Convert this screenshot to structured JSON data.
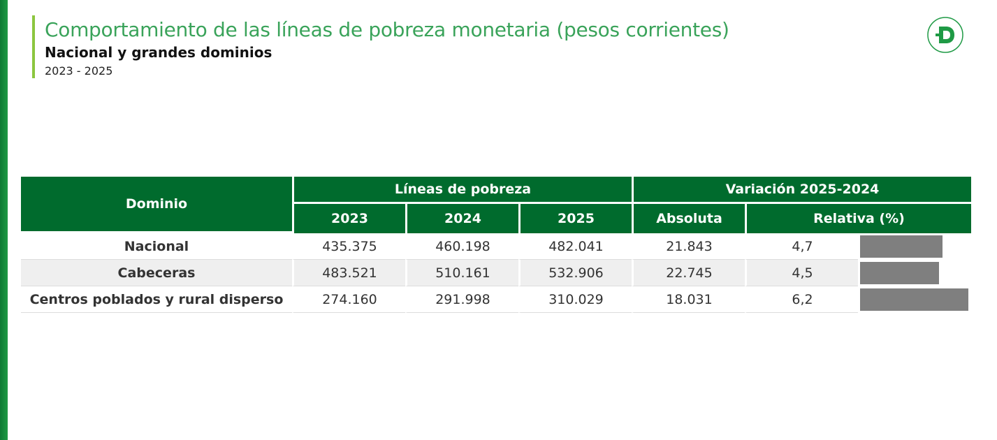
{
  "header": {
    "title": "Comportamiento de las líneas de pobreza monetaria (pesos corrientes)",
    "subtitle": "Nacional y grandes dominios",
    "years": "2023 - 2025"
  },
  "colors": {
    "header_green": "#006b2d",
    "title_green": "#3aa35a",
    "accent_lime": "#8cc63f",
    "bar_gray": "#7f7f7f"
  },
  "logo_icon": "dane-d-logo-icon",
  "chart_data": {
    "type": "table",
    "headers": {
      "dominio": "Dominio",
      "group_lineas": "Líneas de pobreza",
      "group_variacion": "Variación 2025-2024",
      "y2023": "2023",
      "y2024": "2024",
      "y2025": "2025",
      "absoluta": "Absoluta",
      "relativa": "Relativa (%)"
    },
    "rows": [
      {
        "dominio": "Nacional",
        "y2023": "435.375",
        "y2024": "460.198",
        "y2025": "482.041",
        "absoluta": "21.843",
        "relativa": "4,7",
        "relativa_value": 4.7
      },
      {
        "dominio": "Cabeceras",
        "y2023": "483.521",
        "y2024": "510.161",
        "y2025": "532.906",
        "absoluta": "22.745",
        "relativa": "4,5",
        "relativa_value": 4.5
      },
      {
        "dominio": "Centros poblados y rural disperso",
        "y2023": "274.160",
        "y2024": "291.998",
        "y2025": "310.029",
        "absoluta": "18.031",
        "relativa": "6,2",
        "relativa_value": 6.2
      }
    ]
  }
}
